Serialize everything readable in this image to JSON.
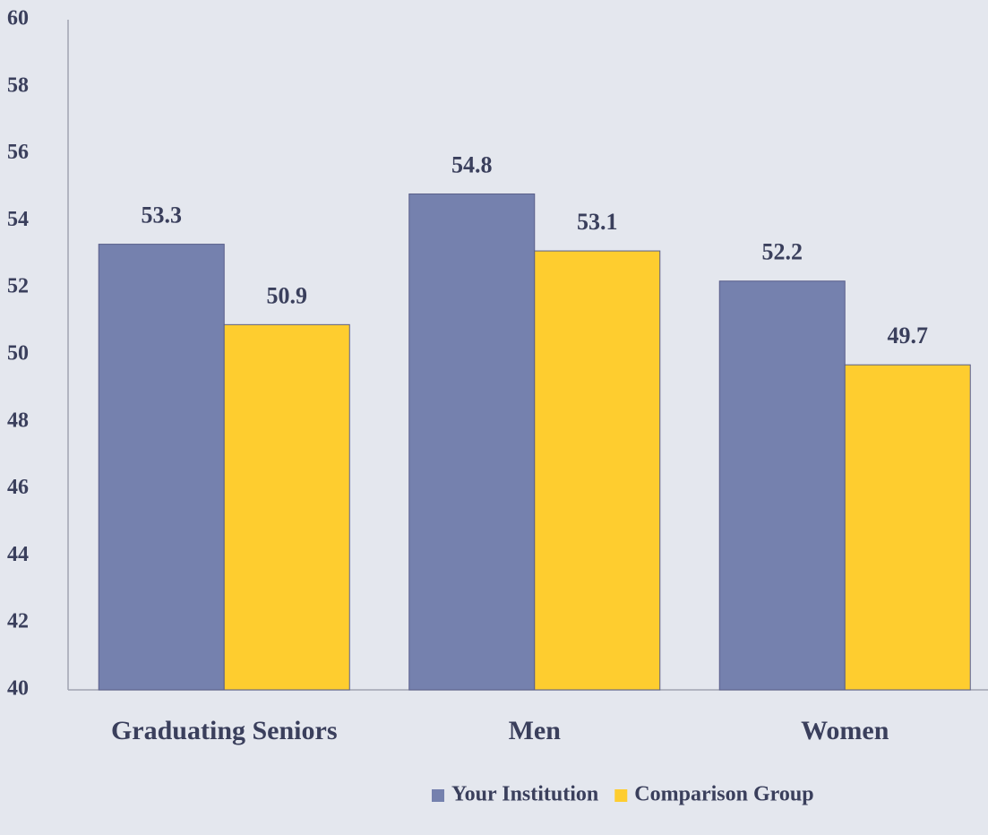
{
  "chart_data": {
    "type": "bar",
    "categories": [
      "Graduating Seniors",
      "Men",
      "Women"
    ],
    "series": [
      {
        "name": "Your Institution",
        "color": "#7581ae",
        "values": [
          53.3,
          54.8,
          52.2
        ]
      },
      {
        "name": "Comparison Group",
        "color": "#fecd2f",
        "values": [
          50.9,
          53.1,
          49.7
        ]
      }
    ],
    "ylim": [
      40,
      60
    ],
    "yticks": [
      40,
      42,
      44,
      46,
      48,
      50,
      52,
      54,
      56,
      58,
      60
    ],
    "grid": false,
    "legend": "bottom"
  }
}
